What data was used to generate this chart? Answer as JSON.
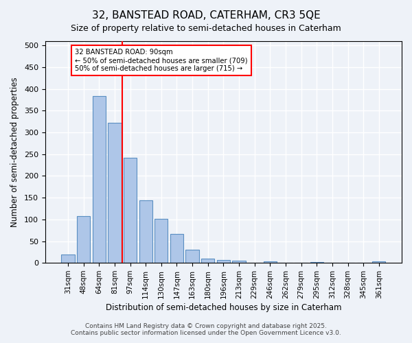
{
  "title_line1": "32, BANSTEAD ROAD, CATERHAM, CR3 5QE",
  "title_line2": "Size of property relative to semi-detached houses in Caterham",
  "xlabel": "Distribution of semi-detached houses by size in Caterham",
  "ylabel": "Number of semi-detached properties",
  "categories": [
    "31sqm",
    "48sqm",
    "64sqm",
    "81sqm",
    "97sqm",
    "114sqm",
    "130sqm",
    "147sqm",
    "163sqm",
    "180sqm",
    "196sqm",
    "213sqm",
    "229sqm",
    "246sqm",
    "262sqm",
    "279sqm",
    "295sqm",
    "312sqm",
    "328sqm",
    "345sqm",
    "361sqm"
  ],
  "values": [
    20,
    107,
    383,
    323,
    241,
    144,
    102,
    67,
    30,
    10,
    6,
    5,
    0,
    3,
    0,
    0,
    2,
    0,
    0,
    0,
    3
  ],
  "bar_color": "#aec6e8",
  "bar_edge_color": "#5a8fc2",
  "annotation_title": "32 BANSTEAD ROAD: 90sqm",
  "annotation_line1": "← 50% of semi-detached houses are smaller (709)",
  "annotation_line2": "50% of semi-detached houses are larger (715) →",
  "footer_line1": "Contains HM Land Registry data © Crown copyright and database right 2025.",
  "footer_line2": "Contains public sector information licensed under the Open Government Licence v3.0.",
  "ylim": [
    0,
    510
  ],
  "yticks": [
    0,
    50,
    100,
    150,
    200,
    250,
    300,
    350,
    400,
    450,
    500
  ],
  "background_color": "#eef2f8",
  "grid_color": "#ffffff",
  "red_line_x": 3.5
}
